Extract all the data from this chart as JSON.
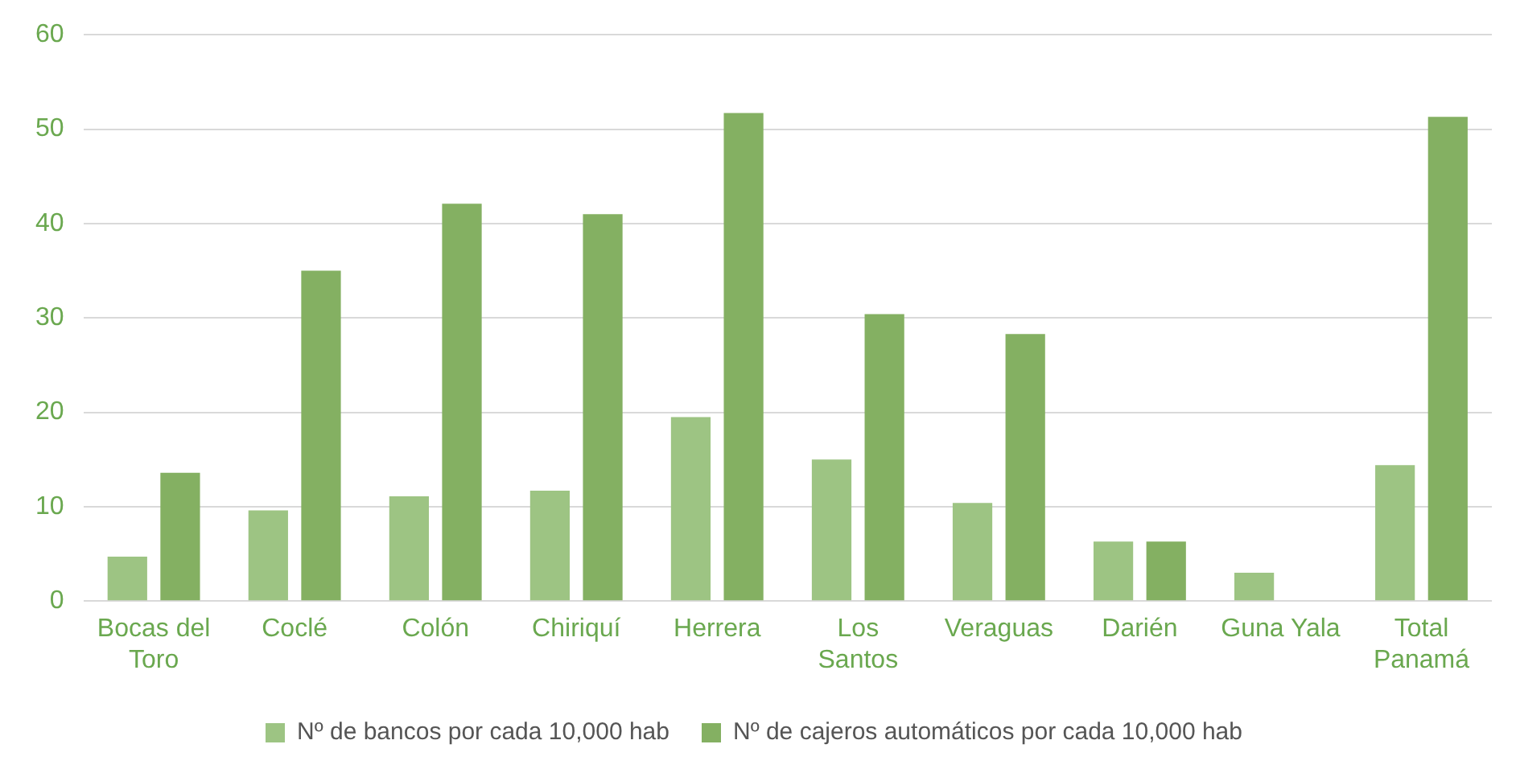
{
  "chart_data": {
    "type": "bar",
    "categories": [
      "Bocas del Toro",
      "Coclé",
      "Colón",
      "Chiriquí",
      "Herrera",
      "Los Santos",
      "Veraguas",
      "Darién",
      "Guna Yala",
      "Total Panamá"
    ],
    "series": [
      {
        "name": "Nº de bancos por cada 10,000 hab",
        "color": "#9dc483",
        "values": [
          4.7,
          9.6,
          11.1,
          11.7,
          19.5,
          15.0,
          10.4,
          6.3,
          3.0,
          14.4
        ]
      },
      {
        "name": "Nº de cajeros automáticos por cada 10,000 hab",
        "color": "#84b062",
        "values": [
          13.6,
          35.0,
          42.1,
          41.0,
          51.7,
          30.4,
          28.3,
          6.3,
          null,
          51.3
        ]
      }
    ],
    "ylim": [
      0,
      60
    ],
    "yticks": [
      0,
      10,
      20,
      30,
      40,
      50,
      60
    ],
    "grid": "y",
    "legend": "bottom"
  }
}
